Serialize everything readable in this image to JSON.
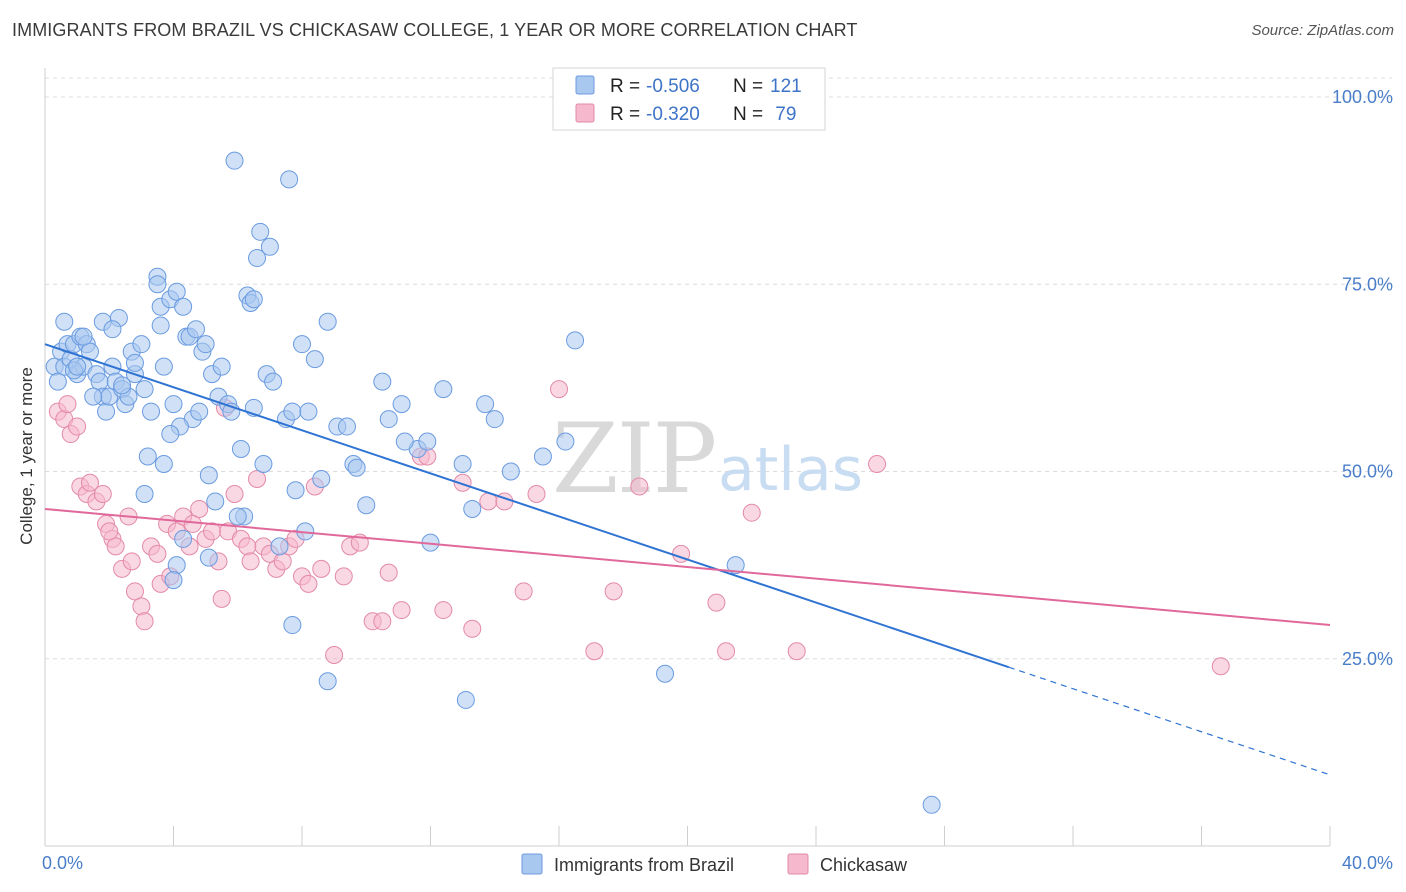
{
  "title": "IMMIGRANTS FROM BRAZIL VS CHICKASAW COLLEGE, 1 YEAR OR MORE CORRELATION CHART",
  "source": "Source: ZipAtlas.com",
  "watermark": {
    "zip": "ZIP",
    "atlas": "atlas"
  },
  "legend": {
    "rows": [
      {
        "r_label": "R = ",
        "r_value": "-0.506",
        "n_label": "N = ",
        "n_value": "121",
        "color": "#a9c8f0",
        "stroke": "#6a9be0"
      },
      {
        "r_label": "R = ",
        "r_value": "-0.320",
        "n_label": "N = ",
        "n_value": " 79",
        "color": "#f6b8cc",
        "stroke": "#e38aa8"
      }
    ]
  },
  "bottom_legend": [
    {
      "label": "Immigrants from Brazil",
      "color": "#a9c8f0",
      "stroke": "#6a9be0"
    },
    {
      "label": "Chickasaw",
      "color": "#f6b8cc",
      "stroke": "#e38aa8"
    }
  ],
  "chart_data": {
    "type": "scatter",
    "ylabel": "College, 1 year or more",
    "xlim": [
      0,
      40
    ],
    "ylim": [
      0,
      105
    ],
    "x_tick_labels": [
      {
        "value": 0,
        "label": "0.0%"
      },
      {
        "value": 40,
        "label": "40.0%"
      }
    ],
    "y_tick_labels": [
      {
        "value": 25,
        "label": "25.0%"
      },
      {
        "value": 50,
        "label": "50.0%"
      },
      {
        "value": 75,
        "label": "75.0%"
      },
      {
        "value": 100,
        "label": "100.0%"
      }
    ],
    "grid": true,
    "series": [
      {
        "name": "Immigrants from Brazil",
        "color": "#a9c8f0",
        "stroke": "#6a9be0",
        "trend_color": "#2f73d3",
        "trend": {
          "x0": 0,
          "y0": 67.0,
          "x1": 40,
          "y1": 9.5,
          "solid_until": 30.0
        },
        "points": [
          [
            0.3,
            64.0
          ],
          [
            0.4,
            62.0
          ],
          [
            0.5,
            66.0
          ],
          [
            0.6,
            64.0
          ],
          [
            0.7,
            67.0
          ],
          [
            0.8,
            65.0
          ],
          [
            0.9,
            67.0
          ],
          [
            1.0,
            63.0
          ],
          [
            1.1,
            68.0
          ],
          [
            1.2,
            64.0
          ],
          [
            1.3,
            67.0
          ],
          [
            1.4,
            66.0
          ],
          [
            1.6,
            63.0
          ],
          [
            1.7,
            62.0
          ],
          [
            1.8,
            70.0
          ],
          [
            1.8,
            60.0
          ],
          [
            1.9,
            58.0
          ],
          [
            2.0,
            60.0
          ],
          [
            2.1,
            64.0
          ],
          [
            2.2,
            62.0
          ],
          [
            2.3,
            70.5
          ],
          [
            2.4,
            61.0
          ],
          [
            2.5,
            59.0
          ],
          [
            2.6,
            60.0
          ],
          [
            2.7,
            66.0
          ],
          [
            2.8,
            63.0
          ],
          [
            3.0,
            67.0
          ],
          [
            3.1,
            61.0
          ],
          [
            3.2,
            52.0
          ],
          [
            3.5,
            76.0
          ],
          [
            3.5,
            75.0
          ],
          [
            3.6,
            72.0
          ],
          [
            3.6,
            69.5
          ],
          [
            3.7,
            64.0
          ],
          [
            3.7,
            51.0
          ],
          [
            3.9,
            73.0
          ],
          [
            4.0,
            59.0
          ],
          [
            4.1,
            74.0
          ],
          [
            4.3,
            72.0
          ],
          [
            4.4,
            68.0
          ],
          [
            4.5,
            68.0
          ],
          [
            4.6,
            57.0
          ],
          [
            4.7,
            69.0
          ],
          [
            4.8,
            58.0
          ],
          [
            4.9,
            66.0
          ],
          [
            5.0,
            67.0
          ],
          [
            5.1,
            49.5
          ],
          [
            5.2,
            63.0
          ],
          [
            5.4,
            60.0
          ],
          [
            5.5,
            64.0
          ],
          [
            5.7,
            59.0
          ],
          [
            5.8,
            58.0
          ],
          [
            5.9,
            91.5
          ],
          [
            6.1,
            53.0
          ],
          [
            6.2,
            44.0
          ],
          [
            6.3,
            73.5
          ],
          [
            6.4,
            72.5
          ],
          [
            6.5,
            73.0
          ],
          [
            6.6,
            78.5
          ],
          [
            6.7,
            82.0
          ],
          [
            6.8,
            51.0
          ],
          [
            6.9,
            63.0
          ],
          [
            7.0,
            80.0
          ],
          [
            7.1,
            62.0
          ],
          [
            7.5,
            57.0
          ],
          [
            7.6,
            89.0
          ],
          [
            7.7,
            58.0
          ],
          [
            7.8,
            47.5
          ],
          [
            8.0,
            67.0
          ],
          [
            8.2,
            58.0
          ],
          [
            8.4,
            65.0
          ],
          [
            8.6,
            49.0
          ],
          [
            8.8,
            70.0
          ],
          [
            9.1,
            56.0
          ],
          [
            9.6,
            51.0
          ],
          [
            9.7,
            50.5
          ],
          [
            10.0,
            45.5
          ],
          [
            10.5,
            62.0
          ],
          [
            10.7,
            57.0
          ],
          [
            11.1,
            59.0
          ],
          [
            11.6,
            53.0
          ],
          [
            11.9,
            54.0
          ],
          [
            12.4,
            61.0
          ],
          [
            13.0,
            51.0
          ],
          [
            13.3,
            45.0
          ],
          [
            13.7,
            59.0
          ],
          [
            14.0,
            57.0
          ],
          [
            14.5,
            50.0
          ],
          [
            15.5,
            52.0
          ],
          [
            16.2,
            54.0
          ],
          [
            16.5,
            67.5
          ],
          [
            1.2,
            68.0
          ],
          [
            2.1,
            69.0
          ],
          [
            0.9,
            63.5
          ],
          [
            3.3,
            58.0
          ],
          [
            4.2,
            56.0
          ],
          [
            2.8,
            64.5
          ],
          [
            1.5,
            60.0
          ],
          [
            5.3,
            46.0
          ],
          [
            6.0,
            44.0
          ],
          [
            0.6,
            70.0
          ],
          [
            1.0,
            64.0
          ],
          [
            2.4,
            61.5
          ],
          [
            3.9,
            55.0
          ],
          [
            7.3,
            40.0
          ],
          [
            8.1,
            42.0
          ],
          [
            9.4,
            56.0
          ],
          [
            11.2,
            54.0
          ],
          [
            4.1,
            37.5
          ],
          [
            4.3,
            41.0
          ],
          [
            4.0,
            35.5
          ],
          [
            5.1,
            38.5
          ],
          [
            7.7,
            29.5
          ],
          [
            8.8,
            22.0
          ],
          [
            13.1,
            19.5
          ],
          [
            19.3,
            23.0
          ],
          [
            21.5,
            37.5
          ],
          [
            27.6,
            5.5
          ],
          [
            12.0,
            40.5
          ],
          [
            6.5,
            58.5
          ],
          [
            3.1,
            47.0
          ]
        ]
      },
      {
        "name": "Chickasaw",
        "color": "#f6b8cc",
        "stroke": "#e38aa8",
        "trend_color": "#e0689a",
        "trend": {
          "x0": 0,
          "y0": 45.0,
          "x1": 40,
          "y1": 29.5,
          "solid_until": 40
        },
        "points": [
          [
            0.4,
            58.0
          ],
          [
            0.6,
            57.0
          ],
          [
            0.8,
            55.0
          ],
          [
            1.0,
            56.0
          ],
          [
            1.1,
            48.0
          ],
          [
            1.3,
            47.0
          ],
          [
            1.4,
            48.5
          ],
          [
            1.6,
            46.0
          ],
          [
            1.8,
            47.0
          ],
          [
            1.9,
            43.0
          ],
          [
            2.1,
            41.0
          ],
          [
            2.2,
            40.0
          ],
          [
            2.4,
            37.0
          ],
          [
            2.6,
            44.0
          ],
          [
            2.7,
            38.0
          ],
          [
            2.8,
            34.0
          ],
          [
            3.0,
            32.0
          ],
          [
            3.1,
            30.0
          ],
          [
            3.3,
            40.0
          ],
          [
            3.5,
            39.0
          ],
          [
            3.6,
            35.0
          ],
          [
            3.8,
            43.0
          ],
          [
            3.9,
            36.0
          ],
          [
            4.1,
            42.0
          ],
          [
            4.3,
            44.0
          ],
          [
            4.5,
            40.0
          ],
          [
            4.6,
            43.0
          ],
          [
            4.8,
            45.0
          ],
          [
            5.0,
            41.0
          ],
          [
            5.2,
            42.0
          ],
          [
            5.4,
            38.0
          ],
          [
            5.5,
            33.0
          ],
          [
            5.7,
            42.0
          ],
          [
            5.9,
            47.0
          ],
          [
            6.1,
            41.0
          ],
          [
            6.3,
            40.0
          ],
          [
            6.4,
            38.0
          ],
          [
            6.6,
            49.0
          ],
          [
            6.8,
            40.0
          ],
          [
            7.0,
            39.0
          ],
          [
            7.2,
            37.0
          ],
          [
            7.4,
            38.0
          ],
          [
            7.6,
            40.0
          ],
          [
            7.8,
            41.0
          ],
          [
            8.0,
            36.0
          ],
          [
            8.2,
            35.0
          ],
          [
            8.4,
            48.0
          ],
          [
            8.6,
            37.0
          ],
          [
            9.0,
            25.5
          ],
          [
            9.3,
            36.0
          ],
          [
            9.5,
            40.0
          ],
          [
            9.8,
            40.5
          ],
          [
            10.2,
            30.0
          ],
          [
            10.5,
            30.0
          ],
          [
            10.7,
            36.5
          ],
          [
            11.1,
            31.5
          ],
          [
            11.7,
            52.0
          ],
          [
            11.9,
            52.0
          ],
          [
            12.4,
            31.5
          ],
          [
            13.0,
            48.5
          ],
          [
            13.3,
            29.0
          ],
          [
            13.8,
            46.0
          ],
          [
            14.3,
            46.0
          ],
          [
            14.9,
            34.0
          ],
          [
            15.3,
            47.0
          ],
          [
            16.0,
            61.0
          ],
          [
            17.1,
            26.0
          ],
          [
            17.7,
            34.0
          ],
          [
            18.5,
            48.0
          ],
          [
            19.8,
            39.0
          ],
          [
            20.9,
            32.5
          ],
          [
            21.2,
            26.0
          ],
          [
            22.0,
            44.5
          ],
          [
            23.4,
            26.0
          ],
          [
            25.9,
            51.0
          ],
          [
            36.6,
            24.0
          ],
          [
            0.7,
            59.0
          ],
          [
            2.0,
            42.0
          ],
          [
            5.6,
            58.5
          ]
        ]
      }
    ]
  }
}
